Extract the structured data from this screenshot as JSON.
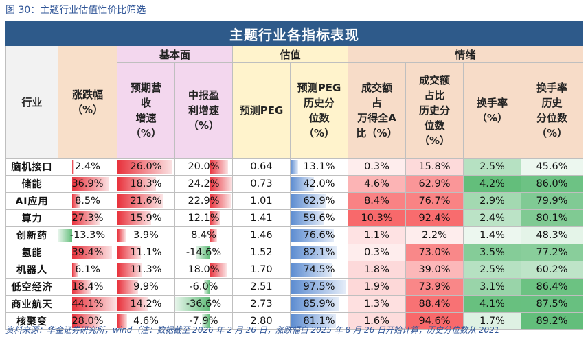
{
  "figure_title": "图 30：主题行业估值性价比筛选",
  "table_title": "主题行业各指标表现",
  "groups": {
    "basic": "基本面",
    "valuation": "估值",
    "sentiment": "情绪"
  },
  "headers": {
    "industry": "行业",
    "change": "涨跌幅\n（%）",
    "rev_growth": "预期营\n收\n增速\n（%）",
    "profit_growth": "中报盈\n利增速\n（%）",
    "peg": "预测PEG",
    "peg_pct": "预测PEG\n历史分\n位数\n（%）",
    "turnover_share": "成交额\n占\n万得全A\n比（%）",
    "turnover_share_pct": "成交额\n占比\n历史分\n位数\n（%）",
    "turnover_rate": "换手率\n（%）",
    "turnover_rate_pct": "换手率\n历史\n分位数\n（%）"
  },
  "columns": [
    "change",
    "rev_growth",
    "profit_growth",
    "peg",
    "peg_pct",
    "turnover_share",
    "turnover_share_pct",
    "turnover_rate",
    "turnover_rate_pct"
  ],
  "rows": [
    {
      "industry": "脑机接口",
      "change": "2.4%",
      "rev_growth": "26.0%",
      "profit_growth": "20.0%",
      "peg": "0.64",
      "peg_pct": "13.1%",
      "turnover_share": "0.3%",
      "turnover_share_pct": "15.8%",
      "turnover_rate": "2.5%",
      "turnover_rate_pct": "45.6%"
    },
    {
      "industry": "储能",
      "change": "36.9%",
      "rev_growth": "18.3%",
      "profit_growth": "24.2%",
      "peg": "0.73",
      "peg_pct": "42.0%",
      "turnover_share": "4.6%",
      "turnover_share_pct": "62.9%",
      "turnover_rate": "4.2%",
      "turnover_rate_pct": "86.0%"
    },
    {
      "industry": "AI应用",
      "change": "8.5%",
      "rev_growth": "21.6%",
      "profit_growth": "22.9%",
      "peg": "1.01",
      "peg_pct": "62.9%",
      "turnover_share": "8.4%",
      "turnover_share_pct": "76.7%",
      "turnover_rate": "2.9%",
      "turnover_rate_pct": "79.9%"
    },
    {
      "industry": "算力",
      "change": "27.3%",
      "rev_growth": "15.9%",
      "profit_growth": "12.1%",
      "peg": "1.41",
      "peg_pct": "59.6%",
      "turnover_share": "10.3%",
      "turnover_share_pct": "92.4%",
      "turnover_rate": "2.4%",
      "turnover_rate_pct": "80.1%"
    },
    {
      "industry": "创新药",
      "change": "-13.3%",
      "rev_growth": "3.9%",
      "profit_growth": "8.4%",
      "peg": "1.46",
      "peg_pct": "76.6%",
      "turnover_share": "1.1%",
      "turnover_share_pct": "2.2%",
      "turnover_rate": "1.4%",
      "turnover_rate_pct": "48.3%"
    },
    {
      "industry": "氢能",
      "change": "39.4%",
      "rev_growth": "11.1%",
      "profit_growth": "-14.6%",
      "peg": "1.52",
      "peg_pct": "82.1%",
      "turnover_share": "0.3%",
      "turnover_share_pct": "73.0%",
      "turnover_rate": "3.5%",
      "turnover_rate_pct": "77.2%"
    },
    {
      "industry": "机器人",
      "change": "6.1%",
      "rev_growth": "11.3%",
      "profit_growth": "18.0%",
      "peg": "1.70",
      "peg_pct": "74.5%",
      "turnover_share": "1.8%",
      "turnover_share_pct": "39.0%",
      "turnover_rate": "2.5%",
      "turnover_rate_pct": "60.2%"
    },
    {
      "industry": "低空经济",
      "change": "18.4%",
      "rev_growth": "9.9%",
      "profit_growth": "-6.0%",
      "peg": "2.51",
      "peg_pct": "97.5%",
      "turnover_share": "1.9%",
      "turnover_share_pct": "73.9%",
      "turnover_rate": "3.1%",
      "turnover_rate_pct": "86.4%"
    },
    {
      "industry": "商业航天",
      "change": "44.1%",
      "rev_growth": "14.2%",
      "profit_growth": "-36.6%",
      "peg": "2.73",
      "peg_pct": "85.9%",
      "turnover_share": "1.3%",
      "turnover_share_pct": "88.4%",
      "turnover_rate": "4.1%",
      "turnover_rate_pct": "87.5%"
    },
    {
      "industry": "核聚变",
      "change": "28.0%",
      "rev_growth": "4.6%",
      "profit_growth": "-7.9%",
      "peg": "2.80",
      "peg_pct": "81.1%",
      "turnover_share": "1.6%",
      "turnover_share_pct": "94.6%",
      "turnover_rate": "1.7%",
      "turnover_rate_pct": "89.2%"
    }
  ],
  "source": "资料来源：华金证券研究所，wind（注：数据截至 2026 年 2 月 26 日，涨跌幅自 2025 年 8 月 26 日开始计算，历史分位数从 2021",
  "colors": {
    "banner": "#2e5a8a",
    "bar_red": "#e8323c",
    "bar_green": "#63be7b",
    "bar_blue": "#5b8bd0",
    "scale_red_high": "#f8696b",
    "scale_green_high": "#63be7b",
    "title_blue": "#2f5597"
  }
}
